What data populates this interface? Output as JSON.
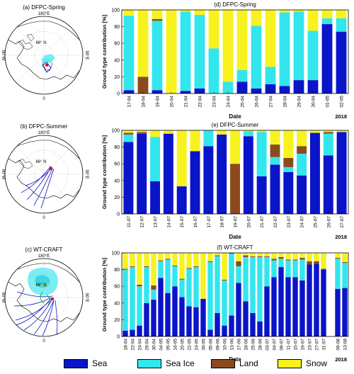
{
  "colors": {
    "sea": "#0a14c8",
    "sea_ice": "#33e6ee",
    "land": "#8b4a1e",
    "snow": "#f8f21e"
  },
  "maps": [
    {
      "title": "(a) DFPC-Spring",
      "top_label": "180°E",
      "lat_label": "66° N",
      "left_label": "90°W",
      "right_label": "90°E",
      "bottom_label": "0"
    },
    {
      "title": "(b) DFPC-Summer",
      "top_label": "180°E",
      "lat_label": "66° N",
      "left_label": "90°W",
      "right_label": "90°E",
      "bottom_label": "0"
    },
    {
      "title": "(c) WT-CRAFT",
      "top_label": "180°E",
      "lat_label": "66° N",
      "left_label": "90°W",
      "right_label": "90°E",
      "bottom_label": "0"
    }
  ],
  "legend": [
    {
      "key": "sea",
      "label": "Sea"
    },
    {
      "key": "sea_ice",
      "label": "Sea Ice"
    },
    {
      "key": "land",
      "label": "Land"
    },
    {
      "key": "snow",
      "label": "Snow"
    }
  ],
  "chart_data": [
    {
      "type": "bar",
      "stacked": true,
      "title": "(d) DFPC-Spring",
      "xlabel": "Date",
      "ylabel": "Ground type contribution [%]",
      "ylim": [
        0,
        100
      ],
      "yticks": [
        0,
        20,
        40,
        60,
        80,
        100
      ],
      "year_label": "2018",
      "categories": [
        "17-04",
        "18-04",
        "19-04",
        "20-04",
        "21-04",
        "22-04",
        "23-04",
        "24-04",
        "25-04",
        "26-04",
        "27-04",
        "28-04",
        "29-04",
        "30-04",
        "01-05",
        "02-05"
      ],
      "series": [
        {
          "name": "Sea",
          "values": [
            4,
            0,
            4,
            0,
            3,
            6,
            0,
            0,
            14,
            6,
            11,
            9,
            16,
            16,
            83,
            74
          ]
        },
        {
          "name": "Sea Ice",
          "values": [
            89,
            0,
            83,
            0,
            95,
            88,
            54,
            14,
            14,
            75,
            21,
            88,
            82,
            59,
            7,
            16
          ]
        },
        {
          "name": "Land",
          "values": [
            0,
            20,
            2,
            0,
            0,
            0,
            0,
            0,
            0,
            0,
            0,
            0,
            0,
            0,
            0,
            0
          ]
        },
        {
          "name": "Snow",
          "values": [
            7,
            80,
            11,
            100,
            2,
            6,
            46,
            86,
            72,
            19,
            68,
            3,
            2,
            25,
            10,
            10
          ]
        }
      ]
    },
    {
      "type": "bar",
      "stacked": true,
      "title": "(e) DFPC-Summer",
      "xlabel": "Date",
      "ylabel": "Ground type contribution [%]",
      "ylim": [
        0,
        100
      ],
      "yticks": [
        0,
        20,
        40,
        60,
        80,
        100
      ],
      "year_label": "2018",
      "categories": [
        "11-07",
        "12-07",
        "13-07",
        "14-07",
        "15-07",
        "16-07",
        "17-07",
        "18-07",
        "19-07",
        "20-07",
        "21-07",
        "22-07",
        "23-07",
        "24-07",
        "25-07",
        "26-07",
        "27-07"
      ],
      "series": [
        {
          "name": "Sea",
          "values": [
            86,
            96,
            39,
            96,
            33,
            75,
            81,
            95,
            0,
            93,
            45,
            59,
            50,
            46,
            97,
            70,
            98
          ]
        },
        {
          "name": "Sea Ice",
          "values": [
            9,
            0,
            53,
            0,
            0,
            0,
            19,
            0,
            0,
            6,
            53,
            9,
            6,
            26,
            0,
            26,
            0
          ]
        },
        {
          "name": "Land",
          "values": [
            2,
            2,
            0,
            0,
            0,
            0,
            0,
            0,
            60,
            0,
            0,
            15,
            11,
            9,
            0,
            2,
            0
          ]
        },
        {
          "name": "Snow",
          "values": [
            3,
            2,
            8,
            4,
            67,
            25,
            0,
            5,
            40,
            1,
            2,
            17,
            33,
            19,
            3,
            2,
            2
          ]
        }
      ]
    },
    {
      "type": "bar",
      "stacked": true,
      "title": "(f) WT-CRAFT",
      "xlabel": "Date",
      "ylabel": "Ground type contribution [%]",
      "ylim": [
        0,
        100
      ],
      "yticks": [
        0,
        20,
        40,
        60,
        80,
        100
      ],
      "year_label": "2018",
      "categories": [
        "18-04",
        "22-04",
        "24-04",
        "26-04",
        "30-04",
        "04-05",
        "05-05",
        "16-05",
        "20-05",
        "22-05",
        "24-05",
        "30-05",
        "05-06",
        "09-06",
        "10-06",
        "13-06",
        "17-06",
        "18-06",
        "25-06",
        "28-06",
        "03-07",
        "04-07",
        "09-07",
        "11-07",
        "15-07",
        "19-07",
        "23-07",
        "27-07",
        "31-07",
        "09-08",
        "13-08"
      ],
      "series": [
        {
          "name": "Sea",
          "values": [
            7,
            8,
            13,
            40,
            44,
            70,
            52,
            60,
            47,
            36,
            35,
            45,
            8,
            28,
            13,
            25,
            64,
            42,
            28,
            18,
            60,
            71,
            83,
            71,
            71,
            67,
            86,
            87,
            80,
            57,
            58
          ]
        },
        {
          "name": "Sea Ice",
          "values": [
            73,
            75,
            47,
            43,
            12,
            20,
            40,
            24,
            21,
            45,
            48,
            0,
            81,
            68,
            54,
            74,
            20,
            53,
            67,
            77,
            35,
            20,
            10,
            20,
            20,
            25,
            0,
            0,
            0,
            36,
            30
          ]
        },
        {
          "name": "Land",
          "values": [
            1,
            1,
            2,
            1,
            5,
            1,
            1,
            1,
            1,
            1,
            1,
            0,
            1,
            1,
            1,
            1,
            6,
            2,
            1,
            1,
            1,
            2,
            2,
            1,
            1,
            2,
            4,
            3,
            1,
            1,
            1
          ]
        },
        {
          "name": "Snow",
          "values": [
            19,
            16,
            38,
            16,
            39,
            9,
            7,
            15,
            31,
            18,
            16,
            55,
            10,
            3,
            32,
            0,
            10,
            3,
            4,
            4,
            4,
            7,
            5,
            8,
            8,
            6,
            10,
            10,
            19,
            6,
            11
          ]
        }
      ]
    }
  ]
}
